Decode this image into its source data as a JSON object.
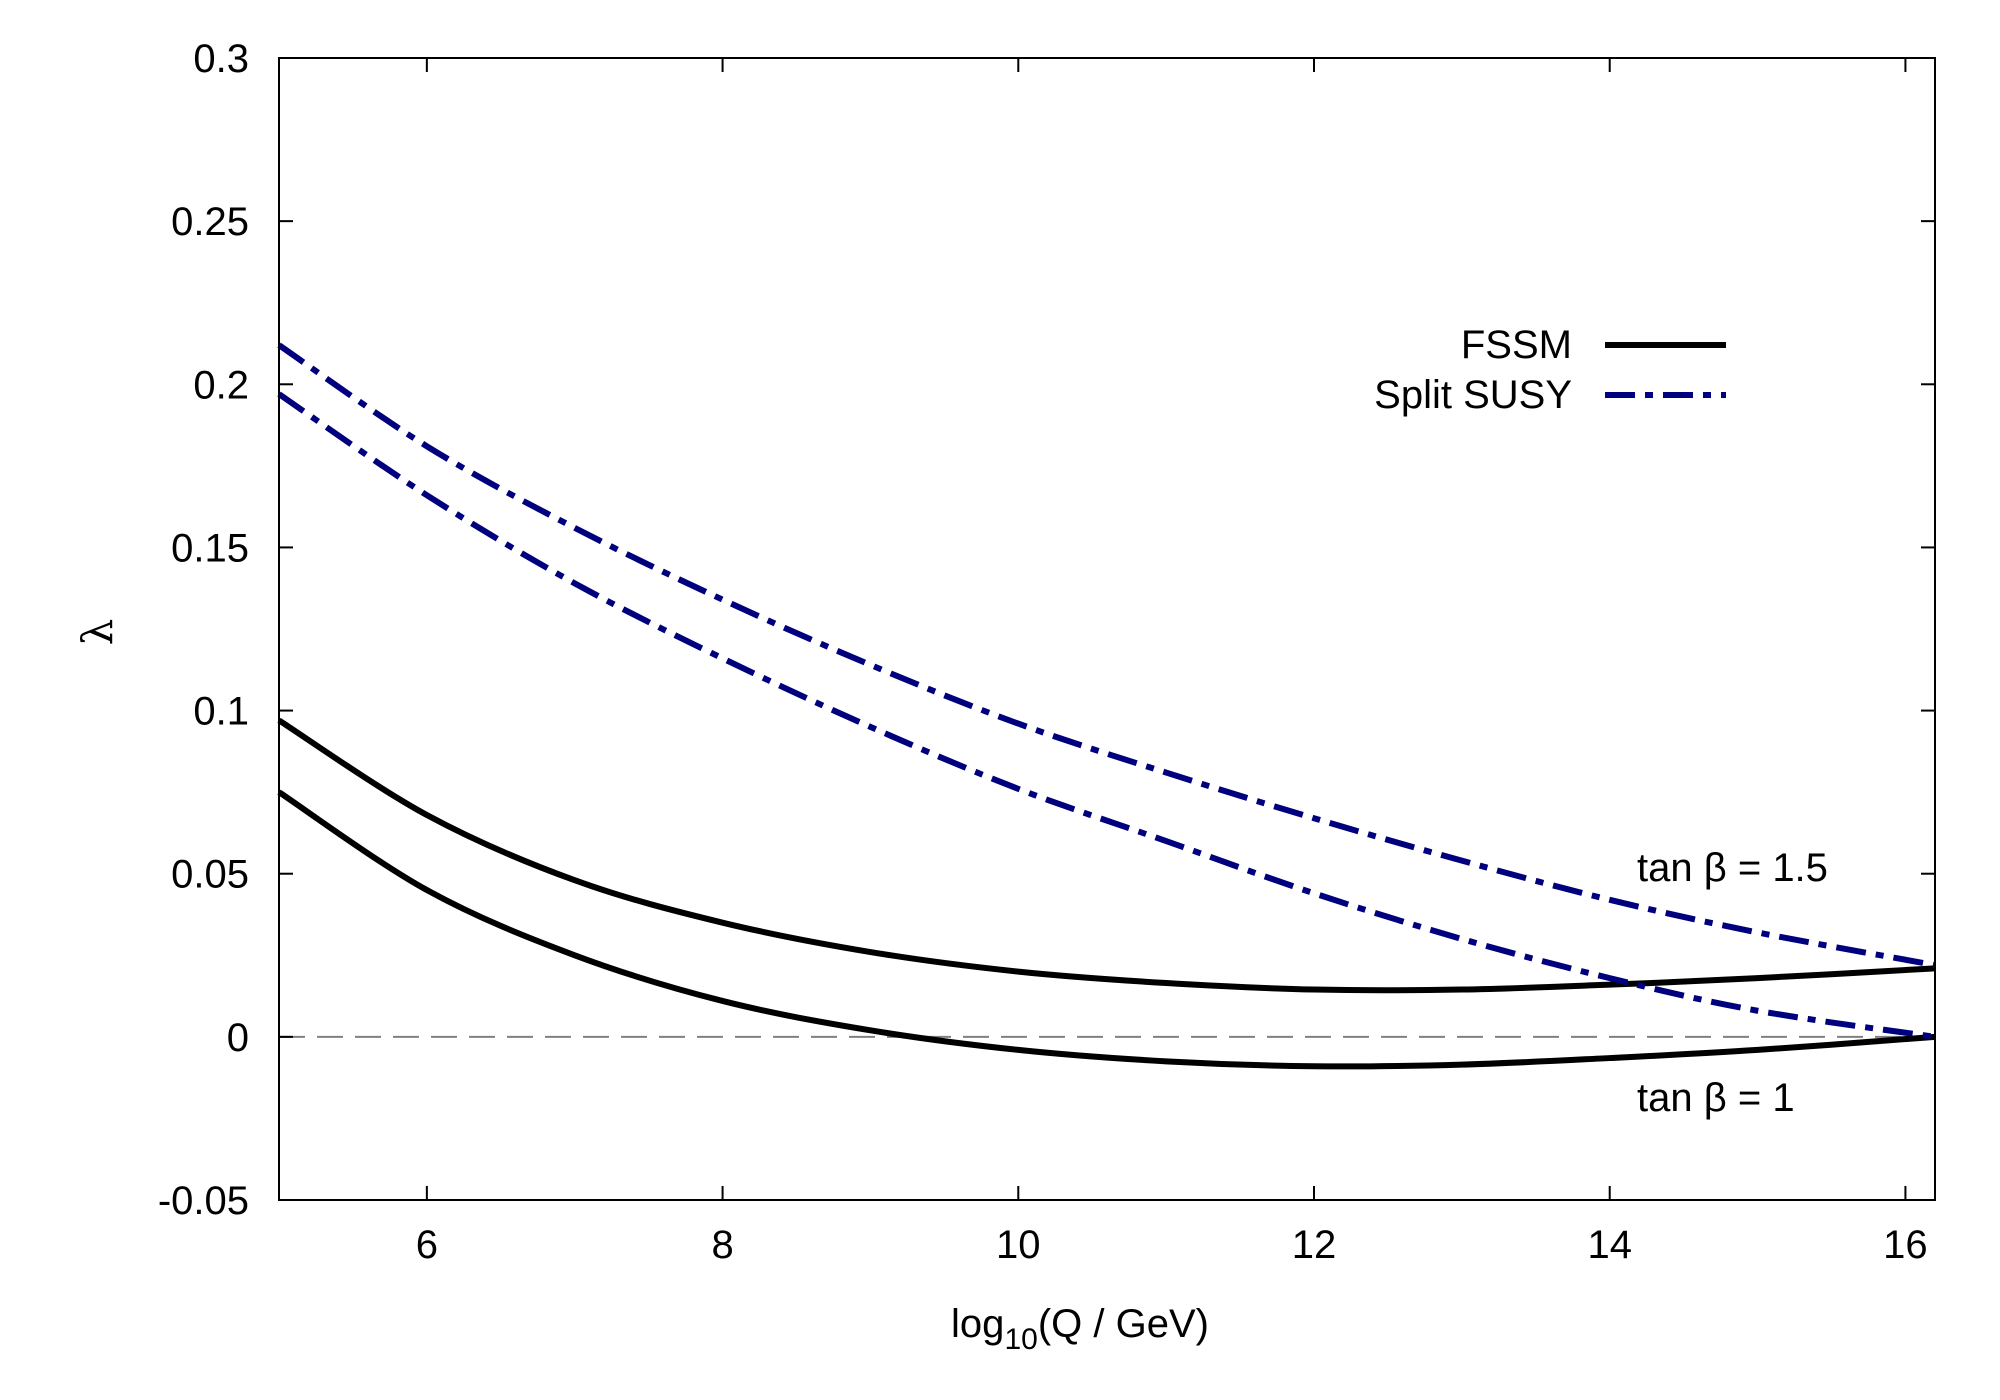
{
  "chart_data": {
    "type": "line",
    "title": "",
    "xlabel": "log",
    "xlabel_sub": "10",
    "xlabel_rest": "(Q / GeV)",
    "ylabel": "λ",
    "xlim": [
      5,
      16.2
    ],
    "ylim": [
      -0.05,
      0.3
    ],
    "xticks": [
      6,
      8,
      10,
      12,
      14,
      16
    ],
    "xtick_labels": [
      "6",
      "8",
      "10",
      "12",
      "14",
      "16"
    ],
    "yticks": [
      -0.05,
      0,
      0.05,
      0.1,
      0.15,
      0.2,
      0.25,
      0.3
    ],
    "ytick_labels": [
      "-0.05",
      "0",
      "0.05",
      "0.1",
      "0.15",
      "0.2",
      "0.25",
      "0.3"
    ],
    "grid": false,
    "legend_position": "top-right",
    "legend": [
      {
        "label": "FSSM",
        "style": "solid",
        "color": "#000000"
      },
      {
        "label": "Split SUSY",
        "style": "dash-dot",
        "color": "#00007f"
      }
    ],
    "annotations": [
      "tan β = 1.5",
      "tan β = 1"
    ],
    "reference_line": {
      "y": 0,
      "style": "dashed",
      "color": "#808080"
    },
    "series": [
      {
        "name": "FSSM tan β = 1.5",
        "group": "FSSM",
        "color": "#000000",
        "style": "solid",
        "x": [
          5,
          6,
          7,
          8,
          9,
          10,
          11,
          12,
          13,
          14,
          15,
          16.2
        ],
        "y": [
          0.097,
          0.068,
          0.048,
          0.035,
          0.026,
          0.02,
          0.0165,
          0.0145,
          0.0145,
          0.016,
          0.018,
          0.021
        ]
      },
      {
        "name": "FSSM tan β = 1",
        "group": "FSSM",
        "color": "#000000",
        "style": "solid",
        "x": [
          5,
          6,
          7,
          8,
          9,
          10,
          11,
          12,
          13,
          14,
          15,
          16.2
        ],
        "y": [
          0.075,
          0.045,
          0.025,
          0.011,
          0.002,
          -0.004,
          -0.0075,
          -0.009,
          -0.0085,
          -0.0065,
          -0.004,
          0
        ]
      },
      {
        "name": "Split SUSY tan β = 1.5",
        "group": "Split SUSY",
        "color": "#00007f",
        "style": "dash-dot",
        "x": [
          5,
          6,
          7,
          8,
          9,
          10,
          11,
          12,
          13,
          14,
          15,
          16.2
        ],
        "y": [
          0.212,
          0.181,
          0.156,
          0.134,
          0.114,
          0.096,
          0.081,
          0.067,
          0.054,
          0.042,
          0.032,
          0.022
        ]
      },
      {
        "name": "Split SUSY tan β = 1",
        "group": "Split SUSY",
        "color": "#00007f",
        "style": "dash-dot",
        "x": [
          5,
          6,
          7,
          8,
          9,
          10,
          11,
          12,
          13,
          14,
          15,
          16.2
        ],
        "y": [
          0.197,
          0.166,
          0.139,
          0.116,
          0.095,
          0.076,
          0.06,
          0.044,
          0.03,
          0.018,
          0.008,
          0
        ]
      }
    ]
  }
}
